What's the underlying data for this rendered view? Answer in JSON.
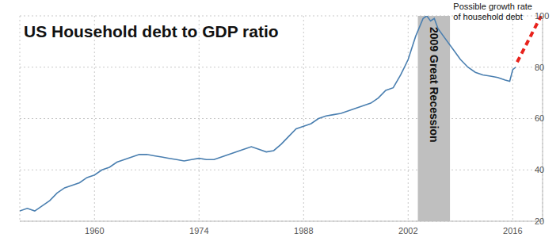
{
  "chart_data": {
    "type": "line",
    "title": "US Household debt to GDP ratio",
    "xlim": [
      1950,
      2020
    ],
    "xticks": [
      1960,
      1974,
      1988,
      2002,
      2016
    ],
    "ylim": [
      20,
      100
    ],
    "yticks": [
      20,
      40,
      60,
      80,
      100
    ],
    "grid": true,
    "series": [
      {
        "color": "#4a7fb0",
        "line_style": "solid",
        "x": [
          1950,
          1951,
          1952,
          1953,
          1954,
          1955,
          1956,
          1957,
          1958,
          1959,
          1960,
          1961,
          1962,
          1963,
          1964,
          1965,
          1966,
          1967,
          1968,
          1969,
          1970,
          1971,
          1972,
          1973,
          1974,
          1975,
          1976,
          1977,
          1978,
          1979,
          1980,
          1981,
          1982,
          1983,
          1984,
          1985,
          1986,
          1987,
          1988,
          1989,
          1990,
          1991,
          1992,
          1993,
          1994,
          1995,
          1996,
          1997,
          1998,
          1999,
          2000,
          2001,
          2002,
          2003,
          2004,
          2004.5,
          2005,
          2005.5,
          2006,
          2007,
          2008,
          2009,
          2010,
          2011,
          2012,
          2013,
          2014,
          2015,
          2015.6,
          2016,
          2016.4
        ],
        "values": [
          24,
          25,
          24,
          26,
          28,
          31,
          33,
          34,
          35,
          37,
          38,
          40,
          41,
          43,
          44,
          45,
          46,
          46,
          45.5,
          45,
          44.5,
          44,
          43.5,
          44,
          44.5,
          44,
          44,
          45,
          46,
          47,
          48,
          49,
          48,
          47,
          47.5,
          50,
          53,
          56,
          57,
          58,
          60,
          61,
          61.5,
          62,
          63,
          64,
          65,
          66,
          68,
          71,
          72,
          77,
          83,
          92,
          99,
          100,
          98,
          99,
          95,
          91,
          87,
          83,
          80,
          78,
          77,
          76.5,
          76,
          75,
          74.5,
          79,
          80
        ]
      },
      {
        "color": "#e8221c",
        "line_style": "dashed",
        "x": [
          2016.6,
          2019.8
        ],
        "values": [
          82,
          100
        ]
      }
    ],
    "annotations": [
      {
        "text": [
          "2009 Great Recession"
        ],
        "x_range": [
          2003.3,
          2007.6
        ],
        "color": "#bfbfbf"
      },
      {
        "text": [
          "Possible growth rate",
          "of household debt"
        ]
      }
    ]
  }
}
